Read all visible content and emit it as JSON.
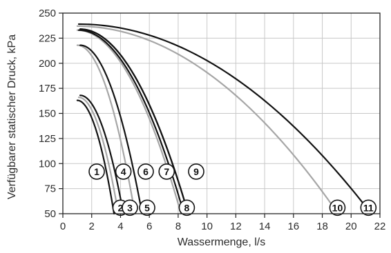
{
  "chart_data": {
    "type": "line",
    "xlabel": "Wassermenge, l/s",
    "ylabel": "Verfügbarer statischer Druck, kPa",
    "xlim": [
      0,
      22
    ],
    "ylim": [
      50,
      250
    ],
    "xticks": [
      "0",
      "2",
      "4",
      "6",
      "8",
      "10",
      "12",
      "14",
      "16",
      "18",
      "20",
      "22"
    ],
    "yticks": [
      "50",
      "75",
      "100",
      "125",
      "150",
      "175",
      "200",
      "225",
      "250"
    ],
    "grid": true,
    "colors": {
      "black_series": "#111111",
      "gray_series": "#a6a6a6",
      "grid": "#c8c8c8",
      "frame": "#222222"
    },
    "series": [
      {
        "name": "1",
        "color": "black",
        "start": [
          1.0,
          163
        ],
        "end": [
          3.55,
          50
        ]
      },
      {
        "name": "2",
        "color": "gray",
        "start": [
          1.1,
          166
        ],
        "end": [
          3.85,
          50
        ]
      },
      {
        "name": "3",
        "color": "black",
        "start": [
          1.2,
          168
        ],
        "end": [
          4.2,
          50
        ]
      },
      {
        "name": "4",
        "color": "gray",
        "start": [
          1.0,
          218
        ],
        "end": [
          5.0,
          50
        ]
      },
      {
        "name": "5",
        "color": "black",
        "start": [
          1.2,
          218
        ],
        "end": [
          5.5,
          50
        ]
      },
      {
        "name": "6",
        "color": "gray",
        "start": [
          1.0,
          233
        ],
        "end": [
          8.2,
          50
        ]
      },
      {
        "name": "7",
        "color": "black",
        "start": [
          1.1,
          233
        ],
        "end": [
          8.4,
          50
        ]
      },
      {
        "name": "8",
        "color": "black",
        "start": [
          1.2,
          234
        ],
        "end": [
          8.7,
          50
        ]
      },
      {
        "name": "9",
        "color": "black",
        "start": [
          1.2,
          234
        ],
        "end": [
          8.7,
          50
        ]
      },
      {
        "name": "10",
        "color": "gray",
        "start": [
          1.0,
          237
        ],
        "end": [
          19.1,
          50
        ]
      },
      {
        "name": "11",
        "color": "black",
        "start": [
          1.1,
          239
        ],
        "end": [
          21.4,
          50
        ]
      }
    ],
    "callouts": [
      {
        "text": "1",
        "x": 2.35,
        "y": 92
      },
      {
        "text": "2",
        "x": 4.0,
        "y": 56
      },
      {
        "text": "3",
        "x": 4.65,
        "y": 56
      },
      {
        "text": "4",
        "x": 4.2,
        "y": 92
      },
      {
        "text": "5",
        "x": 5.85,
        "y": 56
      },
      {
        "text": "6",
        "x": 5.75,
        "y": 92
      },
      {
        "text": "7",
        "x": 7.2,
        "y": 92
      },
      {
        "text": "8",
        "x": 8.6,
        "y": 56
      },
      {
        "text": "9",
        "x": 9.25,
        "y": 92
      },
      {
        "text": "10",
        "x": 19.05,
        "y": 56
      },
      {
        "text": "11",
        "x": 21.2,
        "y": 56
      }
    ]
  }
}
